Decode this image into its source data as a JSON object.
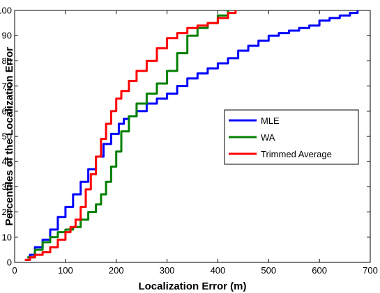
{
  "chart_data": {
    "type": "line",
    "title": "",
    "xlabel": "Localization Error (m)",
    "ylabel": "Percentiles of the Localization Error",
    "xlim": [
      0,
      700
    ],
    "ylim": [
      0,
      100
    ],
    "xticks": [
      "0",
      "100",
      "200",
      "300",
      "400",
      "500",
      "600",
      "700"
    ],
    "yticks": [
      "0",
      "10",
      "20",
      "30",
      "40",
      "50",
      "60",
      "70",
      "80",
      "90",
      "100"
    ],
    "grid": false,
    "legend_position": "right",
    "series": [
      {
        "name": "MLE",
        "color": "#0000ff",
        "x": [
          22,
          30,
          40,
          55,
          70,
          85,
          100,
          115,
          130,
          145,
          160,
          175,
          190,
          205,
          215,
          225,
          240,
          260,
          280,
          300,
          320,
          340,
          360,
          380,
          400,
          420,
          440,
          460,
          480,
          500,
          520,
          540,
          560,
          580,
          600,
          620,
          640,
          660,
          675
        ],
        "y": [
          1,
          3,
          6,
          9,
          13,
          18,
          22,
          27,
          32,
          37,
          42,
          47,
          51,
          55,
          57,
          58,
          60,
          63,
          65,
          67,
          70,
          73,
          75,
          77,
          79,
          81,
          84,
          86,
          88,
          90,
          91,
          92,
          93,
          94,
          96,
          97,
          98,
          99,
          100
        ]
      },
      {
        "name": "WA",
        "color": "#008000",
        "x": [
          25,
          40,
          55,
          70,
          85,
          100,
          115,
          130,
          145,
          160,
          170,
          180,
          190,
          200,
          210,
          225,
          240,
          260,
          280,
          300,
          320,
          340,
          360,
          380,
          400,
          420
        ],
        "y": [
          2,
          5,
          8,
          10,
          12,
          13,
          14,
          17,
          20,
          23,
          27,
          32,
          38,
          44,
          52,
          58,
          63,
          67,
          71,
          76,
          83,
          90,
          93,
          95,
          98,
          100
        ]
      },
      {
        "name": "Trimmed Average",
        "color": "#ff0000",
        "x": [
          20,
          30,
          40,
          55,
          70,
          85,
          100,
          110,
          120,
          130,
          140,
          150,
          160,
          170,
          180,
          190,
          200,
          210,
          225,
          240,
          260,
          280,
          300,
          320,
          340,
          360,
          380,
          400,
          420,
          435
        ],
        "y": [
          1,
          2,
          3,
          4,
          6,
          9,
          12,
          14,
          17,
          22,
          29,
          35,
          42,
          49,
          55,
          60,
          65,
          68,
          72,
          76,
          80,
          85,
          89,
          91,
          93,
          94,
          95,
          97,
          99,
          100
        ]
      }
    ]
  }
}
